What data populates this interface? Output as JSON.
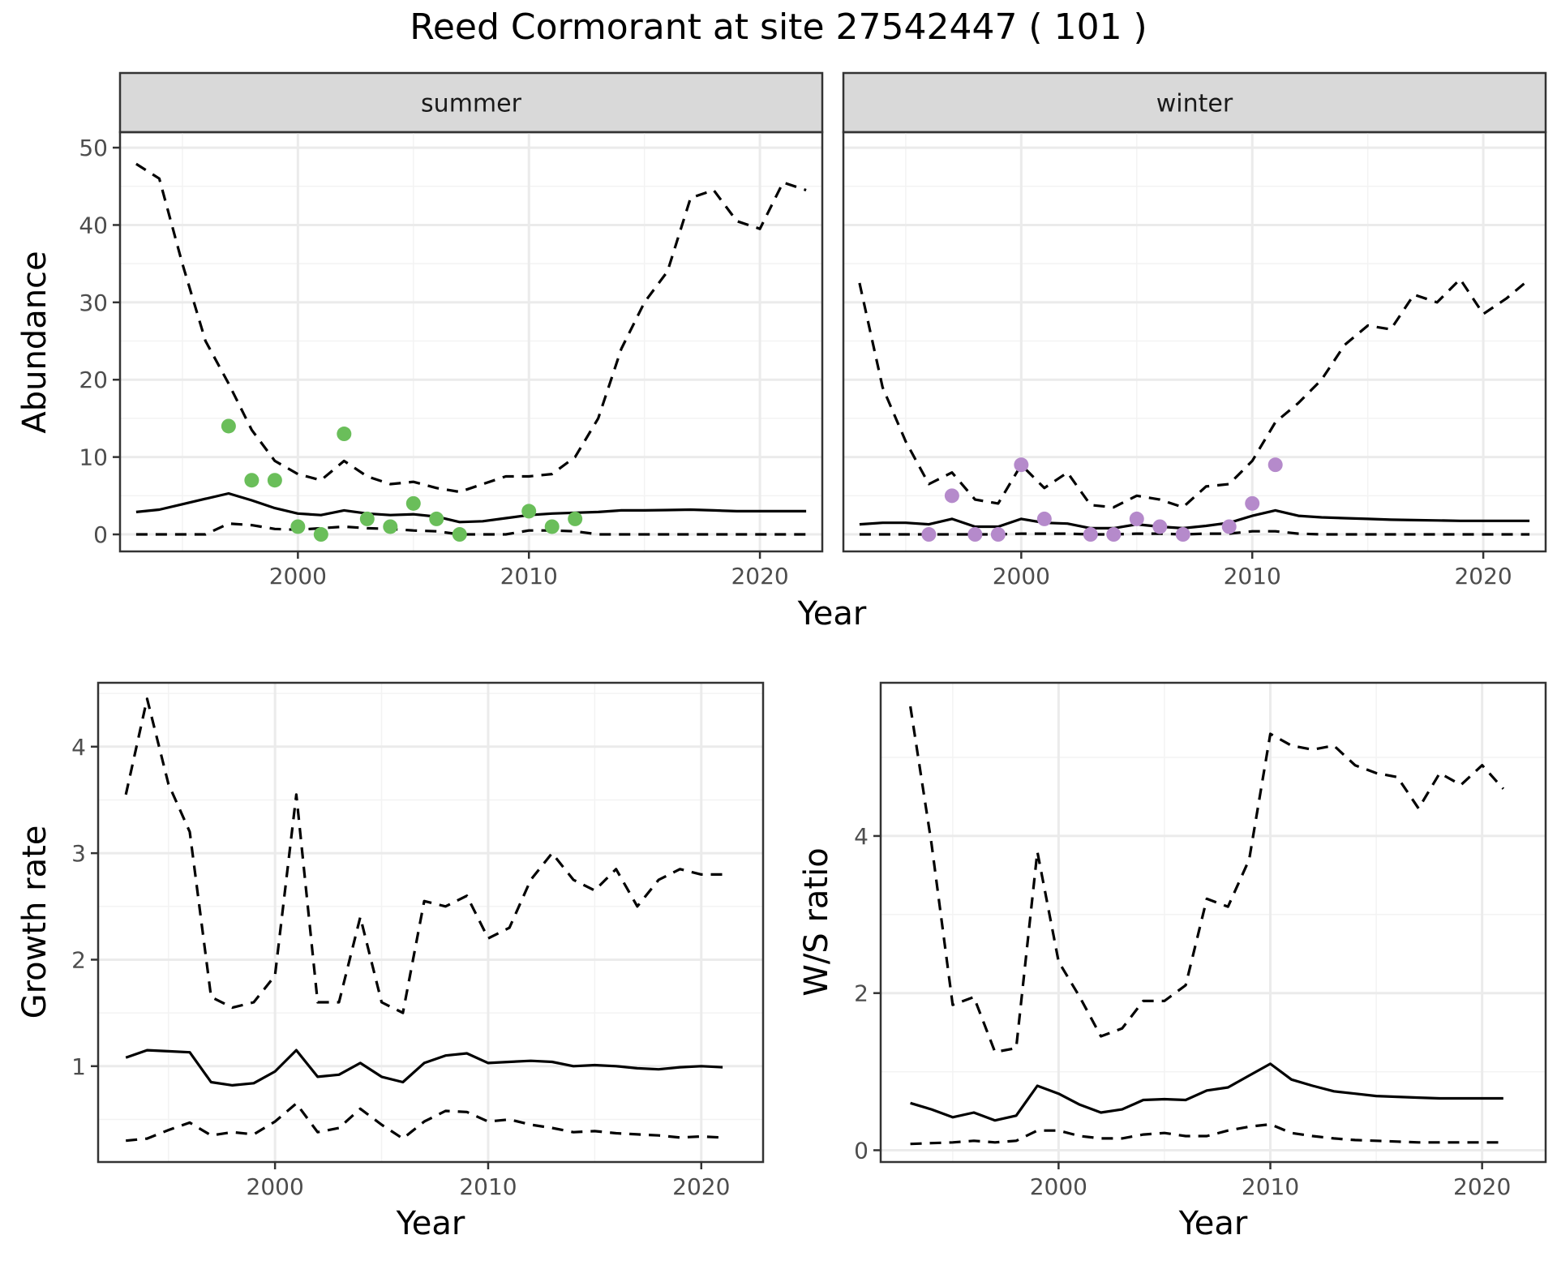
{
  "title": "Reed Cormorant at site 27542447 ( 101 )",
  "colors": {
    "summer_points": "#6ABE5A",
    "winter_points": "#B58ACB"
  },
  "chart_data": [
    {
      "id": "abundance",
      "type": "line",
      "ylabel": "Abundance",
      "xlabel": "Year",
      "xlim": [
        1992.3,
        2022.7
      ],
      "ylim": [
        -2.2,
        52
      ],
      "xticks": [
        2000,
        2010,
        2020
      ],
      "yticks": [
        0,
        10,
        20,
        30,
        40,
        50
      ],
      "grid": true,
      "facets": [
        {
          "label": "summer",
          "point_color": "#6ABE5A",
          "years": [
            1993,
            1994,
            1995,
            1996,
            1997,
            1998,
            1999,
            2000,
            2001,
            2002,
            2003,
            2004,
            2005,
            2006,
            2007,
            2008,
            2009,
            2010,
            2011,
            2012,
            2013,
            2014,
            2015,
            2016,
            2017,
            2018,
            2019,
            2020,
            2021,
            2022
          ],
          "series": [
            {
              "name": "",
              "style": "dashed",
              "values": [
                47.9,
                46,
                35,
                25,
                19.5,
                13.5,
                9.5,
                7.8,
                7,
                9.5,
                7.5,
                6.5,
                6.8,
                6,
                5.5,
                6.5,
                7.5,
                7.5,
                7.8,
                10,
                15,
                24,
                30,
                34,
                43.5,
                44.5,
                40.5,
                39.5,
                45.5,
                44.5
              ]
            },
            {
              "name": "",
              "style": "solid",
              "values": [
                2.9,
                3.2,
                3.9,
                4.6,
                5.3,
                4.4,
                3.4,
                2.7,
                2.5,
                3.1,
                2.7,
                2.5,
                2.6,
                2.3,
                1.6,
                1.7,
                2.1,
                2.5,
                2.7,
                2.8,
                2.9,
                3.1,
                3.1,
                3.15,
                3.2,
                3.1,
                3.0,
                3.0,
                3.0,
                3.0
              ]
            },
            {
              "name": "",
              "style": "dashed",
              "values": [
                0,
                0,
                0,
                0,
                1.4,
                1.2,
                0.7,
                0.6,
                0.8,
                1,
                0.8,
                0.7,
                0.5,
                0.4,
                0,
                0,
                0,
                0.5,
                0.5,
                0.4,
                0,
                0,
                0,
                0,
                0,
                0,
                0,
                0,
                0,
                0
              ]
            }
          ],
          "points": [
            [
              1997,
              14
            ],
            [
              1998,
              7
            ],
            [
              1999,
              7
            ],
            [
              2000,
              1
            ],
            [
              2001,
              0
            ],
            [
              2002,
              13
            ],
            [
              2003,
              2
            ],
            [
              2004,
              1
            ],
            [
              2005,
              4
            ],
            [
              2006,
              2
            ],
            [
              2007,
              0
            ],
            [
              2010,
              3
            ],
            [
              2011,
              1
            ],
            [
              2012,
              2
            ]
          ]
        },
        {
          "label": "winter",
          "point_color": "#B58ACB",
          "years": [
            1993,
            1994,
            1995,
            1996,
            1997,
            1998,
            1999,
            2000,
            2001,
            2002,
            2003,
            2004,
            2005,
            2006,
            2007,
            2008,
            2009,
            2010,
            2011,
            2012,
            2013,
            2014,
            2015,
            2016,
            2017,
            2018,
            2019,
            2020,
            2021,
            2022
          ],
          "series": [
            {
              "name": "",
              "style": "dashed",
              "values": [
                32.5,
                19,
                12,
                6.5,
                8,
                4.5,
                4,
                9,
                6,
                8,
                3.8,
                3.5,
                5,
                4.5,
                3.5,
                6.2,
                6.5,
                9.5,
                14.5,
                17,
                20,
                24.5,
                27,
                26.5,
                31,
                30,
                33,
                28.5,
                30.5,
                33
              ]
            },
            {
              "name": "",
              "style": "solid",
              "values": [
                1.3,
                1.5,
                1.5,
                1.3,
                2,
                1,
                1,
                2,
                1.5,
                1.4,
                0.8,
                0.8,
                1.3,
                1,
                0.8,
                1.1,
                1.5,
                2.4,
                3.1,
                2.4,
                2.2,
                2.1,
                2.0,
                1.9,
                1.85,
                1.8,
                1.75,
                1.75,
                1.75,
                1.75
              ]
            },
            {
              "name": "",
              "style": "dashed",
              "values": [
                0,
                0,
                0,
                0,
                0,
                0,
                0,
                0.1,
                0.1,
                0.1,
                0,
                0,
                0.1,
                0.1,
                0,
                0.1,
                0.1,
                0.4,
                0.4,
                0.1,
                0,
                0,
                0,
                0,
                0,
                0,
                0,
                0,
                0,
                0
              ]
            }
          ],
          "points": [
            [
              1996,
              0
            ],
            [
              1997,
              5
            ],
            [
              1998,
              0
            ],
            [
              1999,
              0
            ],
            [
              2000,
              9
            ],
            [
              2001,
              2
            ],
            [
              2003,
              0
            ],
            [
              2004,
              0
            ],
            [
              2005,
              2
            ],
            [
              2006,
              1
            ],
            [
              2007,
              0
            ],
            [
              2009,
              1
            ],
            [
              2010,
              4
            ],
            [
              2011,
              9
            ]
          ]
        }
      ]
    },
    {
      "id": "growth",
      "type": "line",
      "ylabel": "Growth rate",
      "xlabel": "Year",
      "xlim": [
        1991.7,
        2022.9
      ],
      "ylim": [
        0.1,
        4.6
      ],
      "xticks": [
        2000,
        2010,
        2020
      ],
      "yticks": [
        1,
        2,
        3,
        4
      ],
      "grid": true,
      "years": [
        1993,
        1994,
        1995,
        1996,
        1997,
        1998,
        1999,
        2000,
        2001,
        2002,
        2003,
        2004,
        2005,
        2006,
        2007,
        2008,
        2009,
        2010,
        2011,
        2012,
        2013,
        2014,
        2015,
        2016,
        2017,
        2018,
        2019,
        2020,
        2021
      ],
      "series": [
        {
          "name": "",
          "style": "dashed",
          "values": [
            3.55,
            4.45,
            3.65,
            3.2,
            1.65,
            1.55,
            1.6,
            1.85,
            3.55,
            1.6,
            1.6,
            2.4,
            1.6,
            1.5,
            2.55,
            2.5,
            2.6,
            2.2,
            2.3,
            2.75,
            3.0,
            2.75,
            2.65,
            2.85,
            2.5,
            2.75,
            2.85,
            2.8,
            2.8
          ]
        },
        {
          "name": "",
          "style": "solid",
          "values": [
            1.08,
            1.15,
            1.14,
            1.13,
            0.85,
            0.82,
            0.84,
            0.95,
            1.15,
            0.9,
            0.92,
            1.03,
            0.9,
            0.85,
            1.03,
            1.1,
            1.12,
            1.03,
            1.04,
            1.05,
            1.04,
            1.0,
            1.01,
            1.0,
            0.98,
            0.97,
            0.99,
            1.0,
            0.99
          ]
        },
        {
          "name": "",
          "style": "dashed",
          "values": [
            0.3,
            0.32,
            0.4,
            0.47,
            0.35,
            0.38,
            0.36,
            0.48,
            0.65,
            0.38,
            0.42,
            0.6,
            0.45,
            0.32,
            0.48,
            0.58,
            0.57,
            0.48,
            0.5,
            0.45,
            0.42,
            0.38,
            0.39,
            0.37,
            0.36,
            0.35,
            0.33,
            0.34,
            0.33
          ]
        }
      ]
    },
    {
      "id": "ws_ratio",
      "type": "line",
      "ylabel": "W/S ratio",
      "xlabel": "Year",
      "xlim": [
        1991.6,
        2023.0
      ],
      "ylim": [
        -0.15,
        5.95
      ],
      "xticks": [
        2000,
        2010,
        2020
      ],
      "yticks": [
        0,
        2,
        4
      ],
      "grid": true,
      "years": [
        1993,
        1994,
        1995,
        1996,
        1997,
        1998,
        1999,
        2000,
        2001,
        2002,
        2003,
        2004,
        2005,
        2006,
        2007,
        2008,
        2009,
        2010,
        2011,
        2012,
        2013,
        2014,
        2015,
        2016,
        2017,
        2018,
        2019,
        2020,
        2021
      ],
      "series": [
        {
          "name": "",
          "style": "dashed",
          "values": [
            5.65,
            3.9,
            1.85,
            1.95,
            1.25,
            1.3,
            3.8,
            2.4,
            1.95,
            1.45,
            1.55,
            1.9,
            1.9,
            2.1,
            3.2,
            3.1,
            3.7,
            5.3,
            5.15,
            5.1,
            5.15,
            4.9,
            4.8,
            4.75,
            4.35,
            4.8,
            4.65,
            4.9,
            4.6
          ]
        },
        {
          "name": "",
          "style": "solid",
          "values": [
            0.6,
            0.52,
            0.42,
            0.48,
            0.38,
            0.44,
            0.82,
            0.72,
            0.58,
            0.48,
            0.52,
            0.64,
            0.65,
            0.64,
            0.76,
            0.8,
            0.95,
            1.1,
            0.9,
            0.82,
            0.75,
            0.72,
            0.69,
            0.68,
            0.67,
            0.66,
            0.66,
            0.66,
            0.66
          ]
        },
        {
          "name": "",
          "style": "dashed",
          "values": [
            0.08,
            0.09,
            0.1,
            0.12,
            0.1,
            0.12,
            0.25,
            0.25,
            0.18,
            0.15,
            0.15,
            0.2,
            0.22,
            0.18,
            0.18,
            0.25,
            0.3,
            0.33,
            0.22,
            0.18,
            0.15,
            0.13,
            0.12,
            0.11,
            0.1,
            0.1,
            0.1,
            0.1,
            0.1
          ]
        }
      ]
    }
  ]
}
